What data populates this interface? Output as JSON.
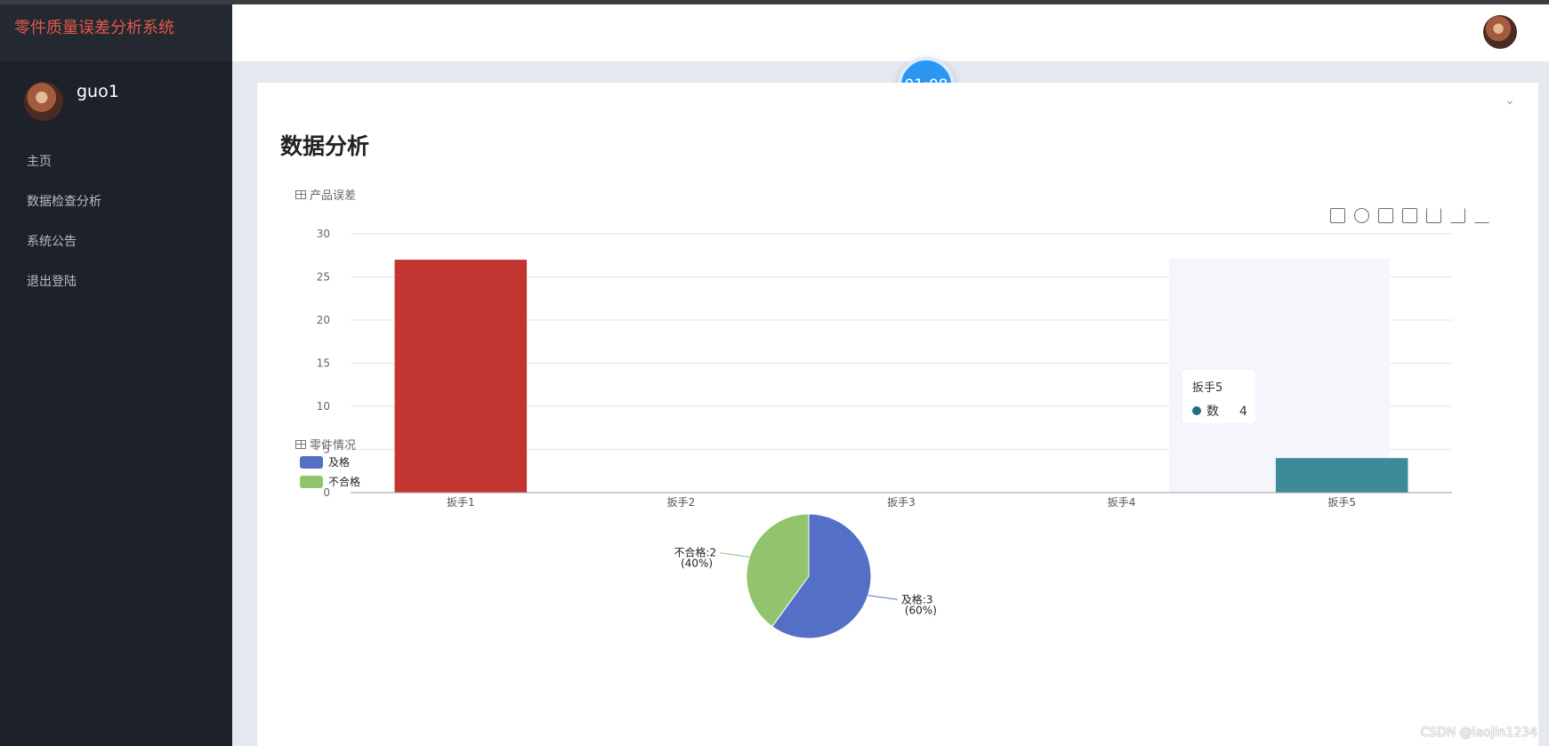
{
  "app": {
    "title": "零件质量误差分析系统",
    "user": "guo1"
  },
  "sidebar": {
    "items": [
      {
        "label": "主页"
      },
      {
        "label": "数据检查分析"
      },
      {
        "label": "系统公告"
      },
      {
        "label": "退出登陆"
      }
    ]
  },
  "timer": {
    "value": "01:08"
  },
  "page": {
    "title": "数据分析"
  },
  "sections": {
    "bar": "产品误差",
    "pie": "零件情况"
  },
  "bar_chart": {
    "type": "bar",
    "categories": [
      "扳手1",
      "扳手2",
      "扳手3",
      "扳手4",
      "扳手5"
    ],
    "values": [
      27,
      0,
      0,
      0,
      4
    ],
    "ylim": [
      0,
      30
    ],
    "yticks": [
      0,
      5,
      10,
      15,
      20,
      25,
      30
    ],
    "tooltip": {
      "title": "扳手5",
      "series": "数",
      "value": 4
    },
    "colors": [
      "#c23531",
      "#2f4554",
      "#61a0a8",
      "#d48265",
      "#3d8b98"
    ]
  },
  "pie_chart": {
    "type": "pie",
    "legend": [
      "及格",
      "不合格"
    ],
    "slices": [
      {
        "name": "及格",
        "value": 3,
        "percent": 60,
        "color": "#5470c6",
        "label": "及格:3",
        "percent_label": "(60%)"
      },
      {
        "name": "不合格",
        "value": 2,
        "percent": 40,
        "color": "#91c46c",
        "label": "不合格:2",
        "percent_label": "(40%)"
      }
    ]
  },
  "watermark": "CSDN @laojin1234"
}
